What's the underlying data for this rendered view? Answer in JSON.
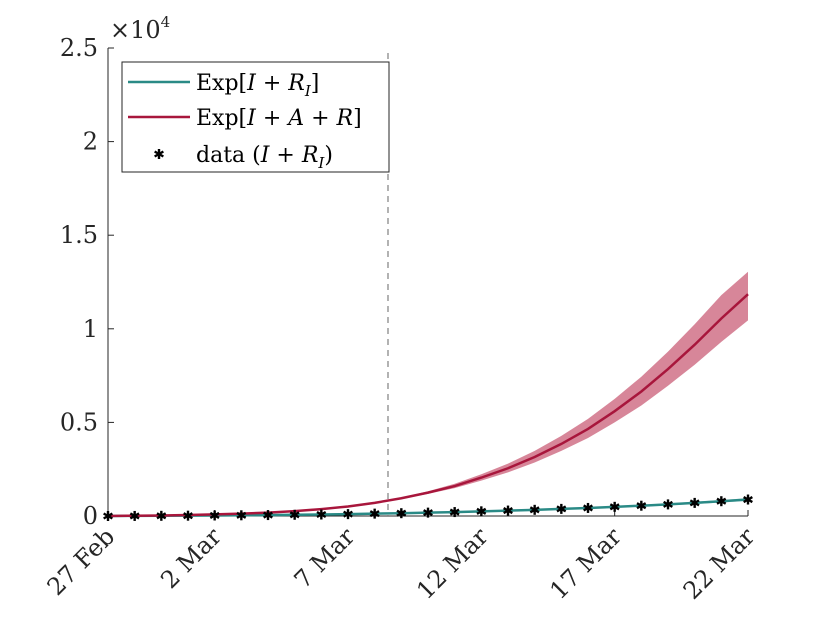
{
  "chart_data": {
    "type": "line",
    "x_tick_labels": [
      "27 Feb",
      "2 Mar",
      "7 Mar",
      "12 Mar",
      "17 Mar",
      "22 Mar"
    ],
    "x_tick_days": [
      0,
      4,
      9,
      14,
      19,
      24
    ],
    "y_tick_labels": [
      "0",
      "0.5",
      "1",
      "1.5",
      "2",
      "2.5"
    ],
    "y_tick_values": [
      0,
      5000,
      10000,
      15000,
      20000,
      25000
    ],
    "y_exponent_label": "×10",
    "y_exponent_power": "4",
    "xlim": [
      0,
      24
    ],
    "ylim": [
      0,
      25000
    ],
    "vline_day": 10.5,
    "series": [
      {
        "name": "Exp[I + R_I]",
        "color": "#2a8a86",
        "x": [
          0,
          1,
          2,
          3,
          4,
          5,
          6,
          7,
          8,
          9,
          10,
          11,
          12,
          13,
          14,
          15,
          16,
          17,
          18,
          19,
          20,
          21,
          22,
          23,
          24
        ],
        "y": [
          0,
          5,
          12,
          20,
          28,
          38,
          50,
          65,
          80,
          100,
          125,
          150,
          180,
          210,
          250,
          290,
          330,
          380,
          430,
          490,
          550,
          620,
          700,
          790,
          880
        ],
        "band_low": [
          0,
          4,
          10,
          18,
          25,
          34,
          45,
          58,
          72,
          90,
          112,
          135,
          162,
          190,
          225,
          262,
          300,
          345,
          392,
          445,
          502,
          565,
          640,
          722,
          805
        ],
        "band_high": [
          0,
          6,
          14,
          22,
          31,
          42,
          55,
          72,
          88,
          110,
          138,
          165,
          198,
          230,
          275,
          318,
          360,
          415,
          468,
          535,
          598,
          675,
          760,
          858,
          955
        ]
      },
      {
        "name": "Exp[I + A + R]",
        "color": "#a8163c",
        "band_color": "#d57f93",
        "x": [
          0,
          1,
          2,
          3,
          4,
          5,
          6,
          7,
          8,
          9,
          10,
          11,
          12,
          13,
          14,
          15,
          16,
          17,
          18,
          19,
          20,
          21,
          22,
          23,
          24
        ],
        "y": [
          0,
          15,
          30,
          55,
          85,
          125,
          180,
          260,
          370,
          510,
          700,
          950,
          1250,
          1600,
          2050,
          2550,
          3150,
          3850,
          4650,
          5600,
          6650,
          7850,
          9150,
          10550,
          11850
        ],
        "band_low": [
          0,
          15,
          30,
          55,
          85,
          125,
          180,
          260,
          370,
          510,
          690,
          920,
          1180,
          1490,
          1890,
          2330,
          2860,
          3480,
          4170,
          5000,
          5900,
          6960,
          8080,
          9300,
          10450
        ],
        "band_high": [
          0,
          15,
          30,
          55,
          85,
          125,
          180,
          260,
          370,
          510,
          710,
          980,
          1320,
          1720,
          2230,
          2800,
          3480,
          4280,
          5190,
          6260,
          7440,
          8780,
          10240,
          11800,
          13050
        ]
      }
    ],
    "data_points": {
      "name": "data (I + R_I)",
      "x": [
        0,
        1,
        2,
        3,
        4,
        5,
        6,
        7,
        8,
        9,
        10,
        11,
        12,
        13,
        14,
        15,
        16,
        17,
        18,
        19,
        20,
        21,
        22,
        23,
        24
      ],
      "y": [
        0,
        3,
        10,
        17,
        28,
        38,
        50,
        65,
        80,
        100,
        127,
        150,
        180,
        210,
        250,
        290,
        330,
        380,
        430,
        490,
        550,
        620,
        700,
        790,
        880
      ]
    },
    "legend": {
      "placement": "top-left",
      "entries": [
        {
          "prefix": "Exp[",
          "body": "I + R",
          "sub": "I",
          "suffix": "]"
        },
        {
          "prefix": "Exp[",
          "body": "I + A + R",
          "sub": "",
          "suffix": "]"
        },
        {
          "prefix": "data (",
          "body": "I + R",
          "sub": "I",
          "suffix": ")"
        }
      ]
    }
  }
}
